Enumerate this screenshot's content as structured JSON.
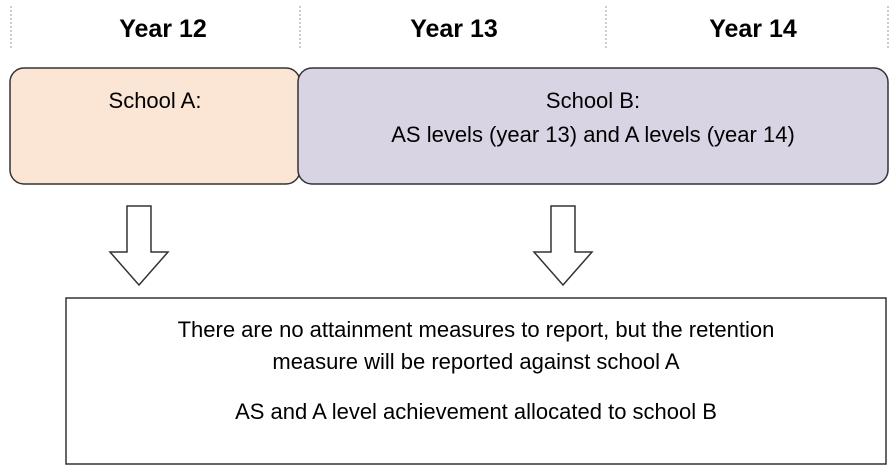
{
  "header": {
    "columns": [
      "Year 12",
      "Year 13",
      "Year 14"
    ]
  },
  "boxes": [
    {
      "lines": [
        "School A:"
      ]
    },
    {
      "lines": [
        "School B:",
        "AS levels (year 13) and A levels (year 14)"
      ]
    }
  ],
  "result": {
    "lines": [
      "There are no attainment measures to report, but the retention",
      "measure will be reported against school A",
      "AS and A level achievement allocated to school B"
    ]
  }
}
